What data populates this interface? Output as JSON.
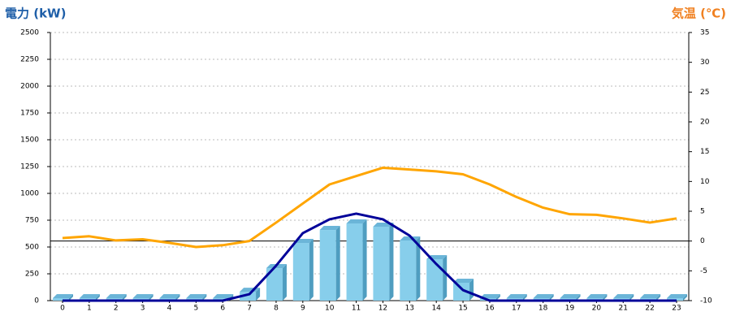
{
  "chart_data": {
    "type": "bar",
    "title": "電力 (kW)",
    "y2_title": "気温 (℃)",
    "categories": [
      "0",
      "1",
      "2",
      "3",
      "4",
      "5",
      "6",
      "7",
      "8",
      "9",
      "10",
      "11",
      "12",
      "13",
      "14",
      "15",
      "16",
      "17",
      "18",
      "19",
      "20",
      "21",
      "22",
      "23"
    ],
    "series": [
      {
        "type": "bar",
        "color": "#87ceeb",
        "values": [
          0,
          0,
          0,
          0,
          0,
          0,
          0,
          60,
          280,
          515,
          636,
          697,
          667,
          538,
          364,
          144,
          0,
          0,
          0,
          0,
          0,
          0,
          0,
          0
        ]
      },
      {
        "type": "line",
        "color": "#000099",
        "values": [
          0,
          0,
          0,
          0,
          0,
          0,
          0,
          60,
          326,
          629,
          758,
          811,
          758,
          606,
          341,
          98,
          0,
          0,
          0,
          0,
          0,
          0,
          0,
          0
        ]
      },
      {
        "type": "line",
        "axis": "y2",
        "color": "#ffa500",
        "values": [
          0.5,
          0.8,
          0.1,
          0.3,
          -0.3,
          -1.0,
          -0.7,
          0,
          3.1,
          6.3,
          9.5,
          10.9,
          12.3,
          12.0,
          11.7,
          11.2,
          9.5,
          7.4,
          5.6,
          4.5,
          4.4,
          3.8,
          3.1,
          3.8
        ]
      }
    ],
    "ylim": [
      0,
      2500
    ],
    "yticks": [
      0,
      250,
      500,
      750,
      1000,
      1250,
      1500,
      1750,
      2000,
      2250,
      2500
    ],
    "y2lim": [
      -10,
      35
    ],
    "y2ticks": [
      -10,
      -5,
      0,
      5,
      10,
      15,
      20,
      25,
      30,
      35
    ],
    "grid": true
  }
}
